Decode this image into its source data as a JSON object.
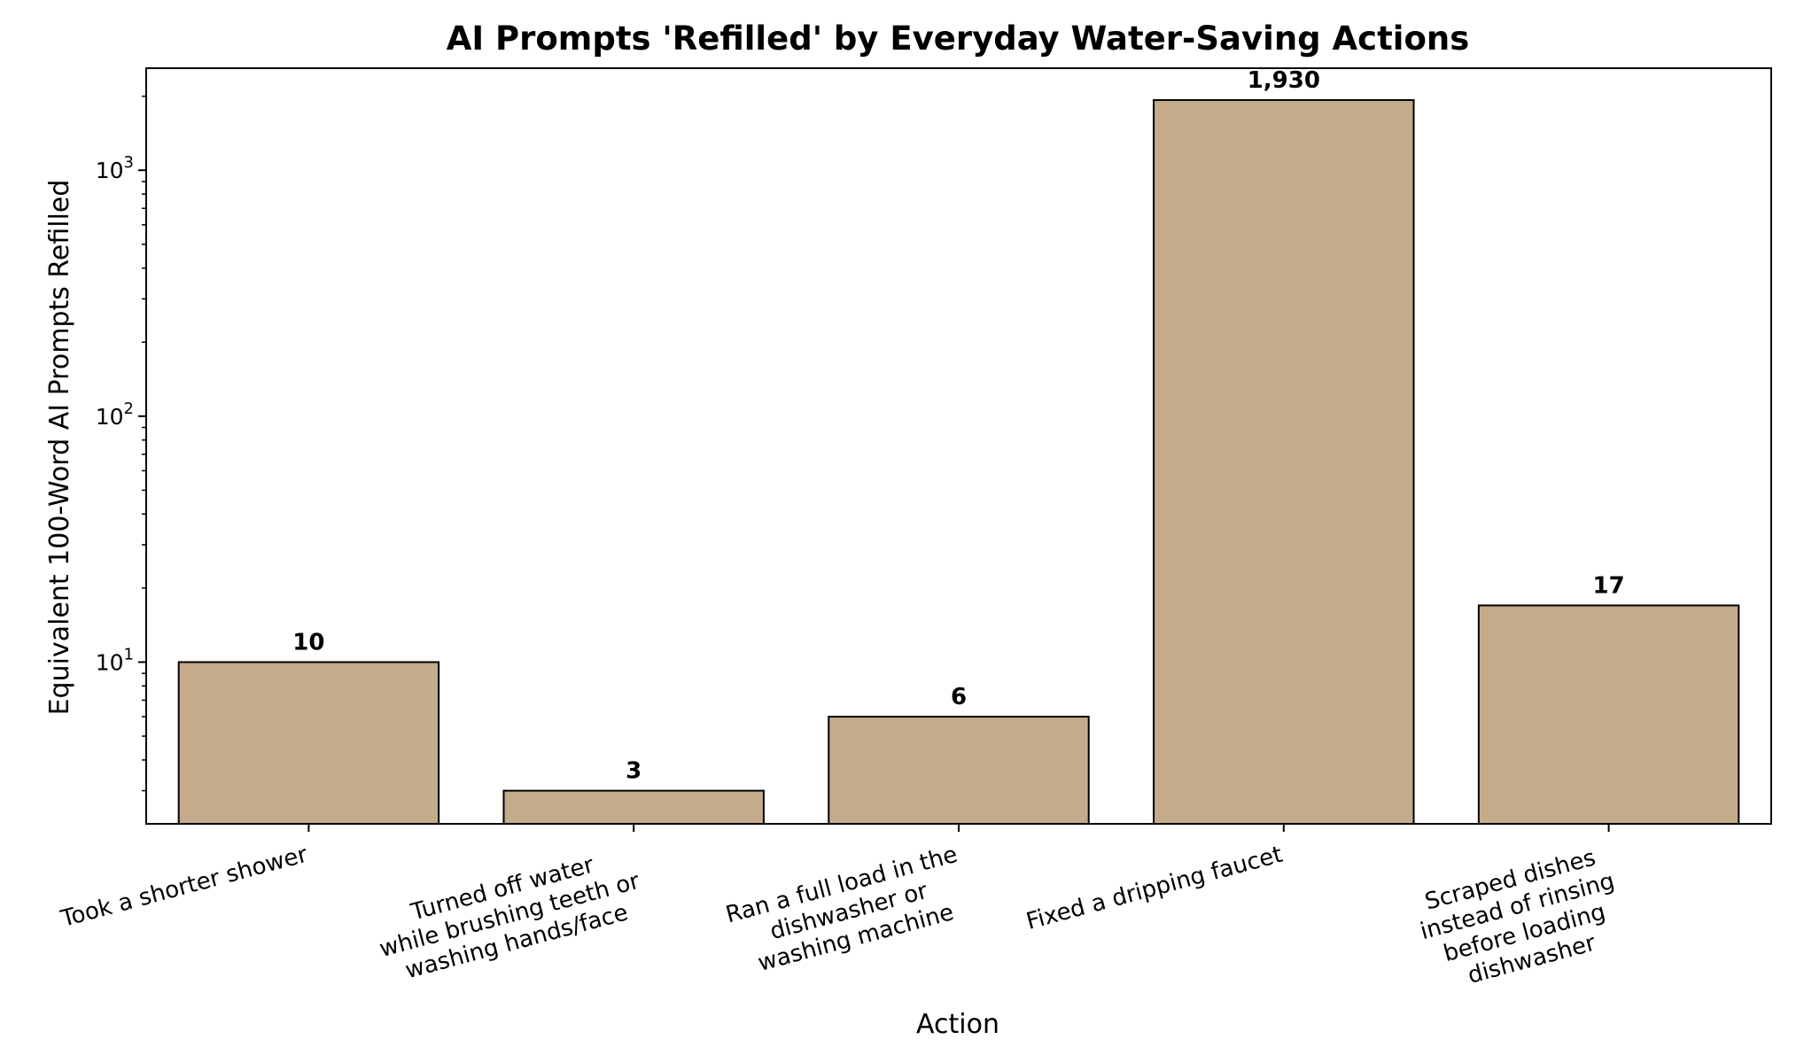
{
  "chart_data": {
    "type": "bar",
    "title": "AI Prompts 'Refilled' by Everyday Water-Saving Actions",
    "xlabel": "Action",
    "ylabel": "Equivalent 100-Word AI Prompts Refilled",
    "yscale": "log",
    "ylim": [
      2.2,
      2600
    ],
    "y_ticks": [
      {
        "base": "10",
        "exp": "1",
        "value": 10
      },
      {
        "base": "10",
        "exp": "2",
        "value": 100
      },
      {
        "base": "10",
        "exp": "3",
        "value": 1000
      }
    ],
    "categories": [
      [
        "Took a shorter shower"
      ],
      [
        "Turned off water",
        "while brushing teeth or",
        "washing hands/face"
      ],
      [
        "Ran a full load in the",
        "dishwasher or",
        "washing machine"
      ],
      [
        "Fixed a dripping faucet"
      ],
      [
        "Scraped dishes",
        "instead of rinsing",
        "before loading",
        "dishwasher"
      ]
    ],
    "values": [
      10,
      3,
      6,
      1930,
      17
    ],
    "value_labels": [
      "10",
      "3",
      "6",
      "1,930",
      "17"
    ],
    "bar_color": "#c4ab8a",
    "edge_color": "#000000",
    "grid": false,
    "legend": "none"
  }
}
